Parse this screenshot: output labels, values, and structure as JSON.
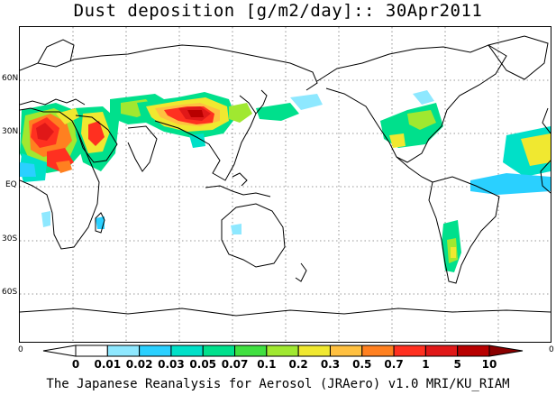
{
  "title": "Dust deposition [g/m2/day]:: 30Apr2011",
  "map": {
    "latitude_labels": [
      "60N",
      "30N",
      "EQ",
      "30S",
      "60S"
    ],
    "edge_label_left": "0",
    "edge_label_right": "0",
    "gridlines": "dotted"
  },
  "colorbar": {
    "unit": "g/m2/day",
    "labels": [
      "0",
      "0.01",
      "0.02",
      "0.03",
      "0.05",
      "0.07",
      "0.1",
      "0.2",
      "0.3",
      "0.5",
      "0.7",
      "1",
      "5",
      "10"
    ],
    "colors": [
      "#ffffff",
      "#ffffff",
      "#8ee8ff",
      "#2ad0ff",
      "#00e0c8",
      "#00e08c",
      "#40e040",
      "#a0e830",
      "#f0e830",
      "#ffc040",
      "#ff8020",
      "#ff3020",
      "#e01818",
      "#b80000",
      "#8a0000"
    ]
  },
  "footer": "The Japanese Reanalysis for Aerosol (JRAero) v1.0 MRI/KU_RIAM"
}
